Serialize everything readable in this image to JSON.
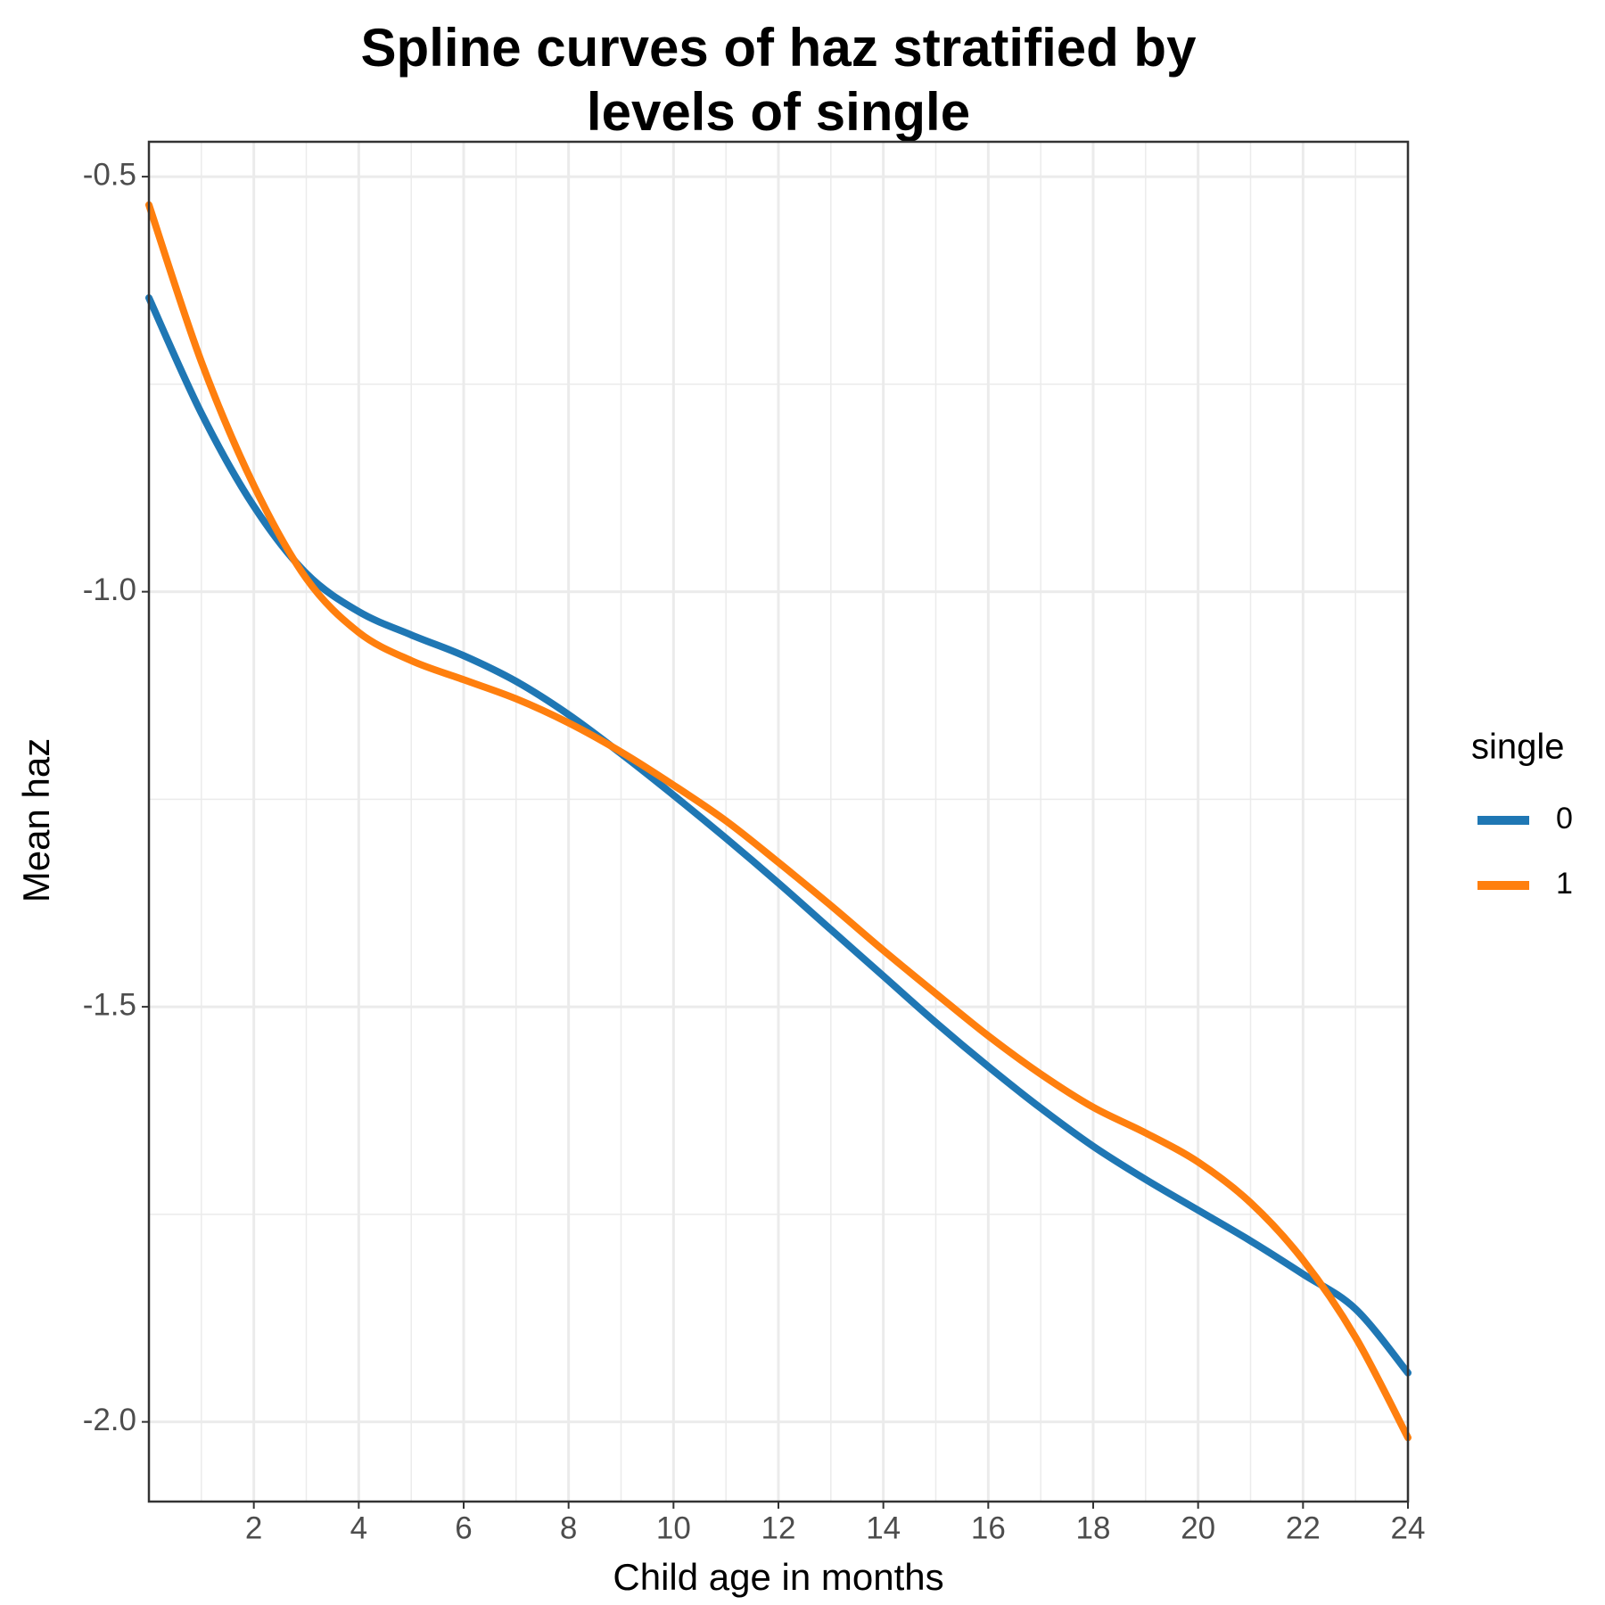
{
  "chart_data": {
    "type": "line",
    "title": [
      "Spline curves of haz stratified by",
      "levels of single"
    ],
    "x_label": "Child age in months",
    "y_label": "Mean haz",
    "legend_title": "single",
    "legend": "right",
    "x": [
      0,
      1,
      2,
      3,
      4,
      5,
      6,
      7,
      8,
      9,
      10,
      11,
      12,
      13,
      14,
      15,
      16,
      17,
      18,
      19,
      20,
      21,
      22,
      23,
      24
    ],
    "series": [
      {
        "name": "0",
        "color": "#1f77b4",
        "values": [
          -0.646,
          -0.785,
          -0.897,
          -0.978,
          -1.024,
          -1.052,
          -1.077,
          -1.108,
          -1.148,
          -1.195,
          -1.245,
          -1.297,
          -1.351,
          -1.407,
          -1.463,
          -1.519,
          -1.572,
          -1.622,
          -1.668,
          -1.708,
          -1.745,
          -1.782,
          -1.822,
          -1.864,
          -1.941
        ]
      },
      {
        "name": "1",
        "color": "#ff7f0e",
        "values": [
          -0.534,
          -0.723,
          -0.872,
          -0.984,
          -1.049,
          -1.083,
          -1.106,
          -1.129,
          -1.158,
          -1.193,
          -1.233,
          -1.276,
          -1.326,
          -1.378,
          -1.432,
          -1.484,
          -1.535,
          -1.581,
          -1.621,
          -1.652,
          -1.687,
          -1.736,
          -1.805,
          -1.898,
          -2.019
        ]
      }
    ],
    "xlim": [
      0,
      24
    ],
    "ylim": [
      -2.096,
      -0.458
    ],
    "xticks": [
      2,
      4,
      6,
      8,
      10,
      12,
      14,
      16,
      18,
      20,
      22,
      24
    ],
    "yticks": [
      -0.5,
      {
        "value": -1.0,
        "label": "-1.0"
      },
      -1.5,
      {
        "value": -2.0,
        "label": "-2.0"
      }
    ],
    "x_minor_ticks": [
      1,
      3,
      5,
      7,
      9,
      11,
      13,
      15,
      17,
      19,
      21,
      23
    ],
    "y_minor_ticks": [
      -0.75,
      -1.25,
      -1.75
    ],
    "grid": true
  }
}
